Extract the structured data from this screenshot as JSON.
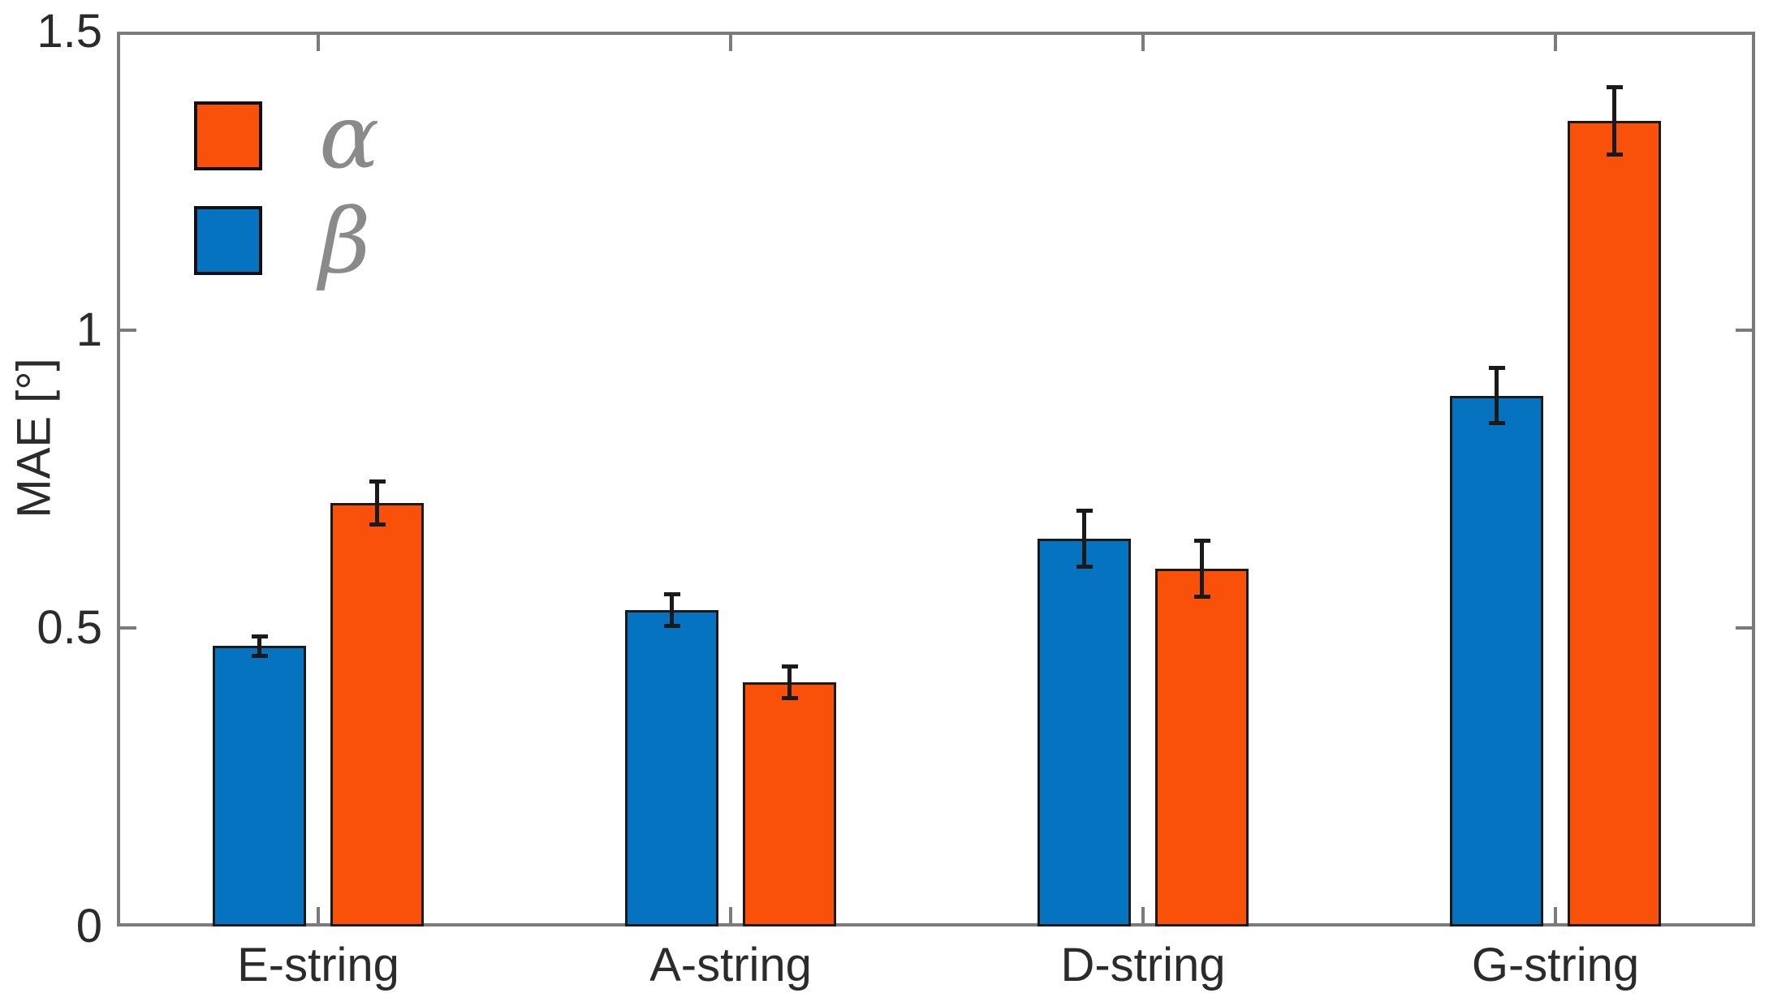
{
  "chart_data": {
    "type": "bar",
    "title": "",
    "xlabel": "",
    "ylabel": "MAE [°]",
    "ylim": [
      0,
      1.5
    ],
    "grid": false,
    "categories": [
      "E-string",
      "A-string",
      "D-string",
      "G-string"
    ],
    "series": [
      {
        "key": "beta",
        "name": "β",
        "color": "#0673C0",
        "values": [
          0.47,
          0.53,
          0.65,
          0.89
        ],
        "errors": [
          0.02,
          0.03,
          0.05,
          0.05
        ]
      },
      {
        "key": "alpha",
        "name": "α",
        "color": "#F9510A",
        "values": [
          0.71,
          0.41,
          0.6,
          1.35
        ],
        "errors": [
          0.04,
          0.03,
          0.05,
          0.06
        ]
      }
    ],
    "y_ticks": [
      {
        "value": 0,
        "label": "0"
      },
      {
        "value": 0.5,
        "label": "0.5"
      },
      {
        "value": 1,
        "label": "1"
      },
      {
        "value": 1.5,
        "label": "1.5"
      }
    ],
    "legend": {
      "position": "top-left",
      "items": [
        {
          "label": "α",
          "color": "#F9510A"
        },
        {
          "label": "β",
          "color": "#0673C0"
        }
      ]
    },
    "style": {
      "axis_color": "#7b7b7b",
      "tick_label_color": "#2b2b2b",
      "bar_edge_color": "#1a1a1a",
      "error_bar_color": "#1a1a1a",
      "legend_text_color": "#8a8a8a"
    }
  }
}
